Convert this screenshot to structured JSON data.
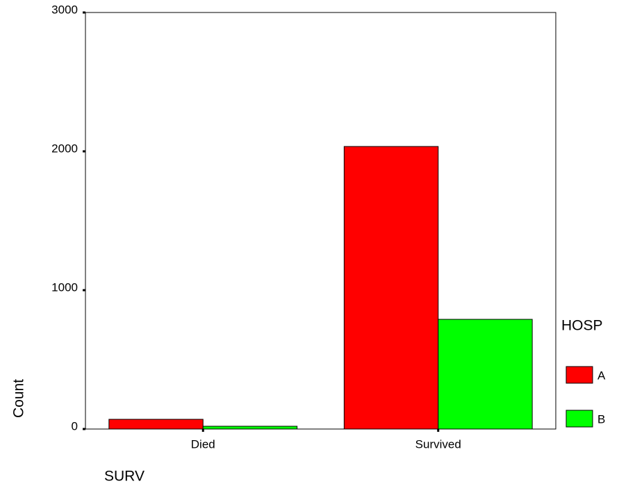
{
  "chart_data": {
    "type": "bar",
    "categories": [
      "Died",
      "Survived"
    ],
    "series": [
      {
        "name": "A",
        "color": "#ff0000",
        "values": [
          70,
          2035
        ]
      },
      {
        "name": "B",
        "color": "#00ff00",
        "values": [
          20,
          790
        ]
      }
    ],
    "ylim": [
      0,
      3000
    ],
    "yticks": [
      0,
      1000,
      2000,
      3000
    ],
    "x_label": "SURV",
    "y_label": "Count",
    "legend_title": "HOSP",
    "legend": "right"
  }
}
